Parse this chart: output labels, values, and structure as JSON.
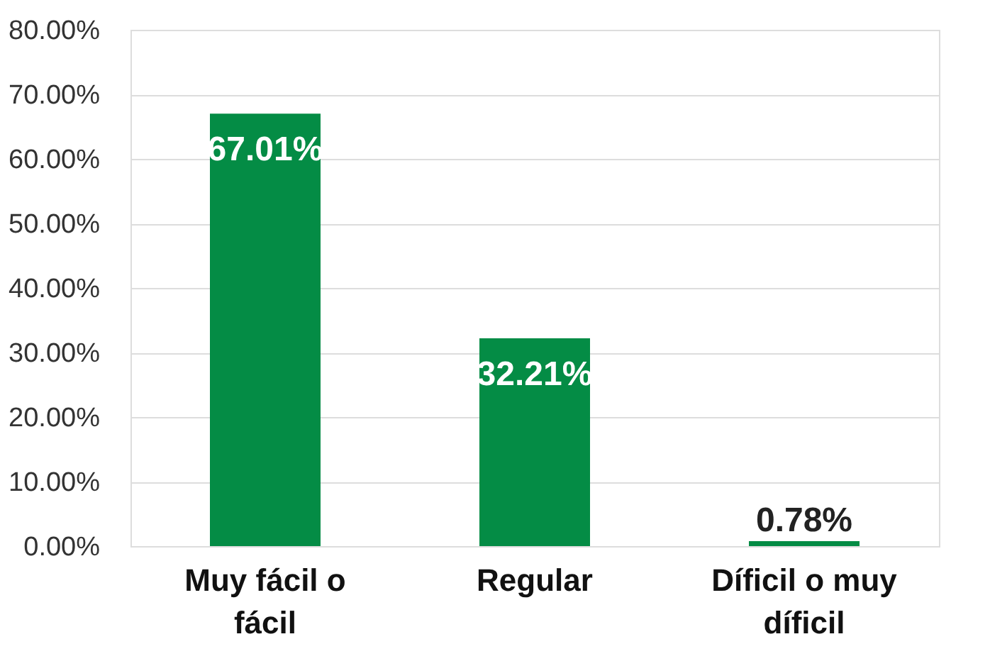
{
  "chart_data": {
    "type": "bar",
    "categories": [
      "Muy fácil o fácil",
      "Regular",
      "Díficil o muy díficil"
    ],
    "values": [
      67.01,
      32.21,
      0.78
    ],
    "color": "#048c45",
    "value_labels": [
      "67.01%",
      "32.21%",
      "0.78%"
    ],
    "ylim": [
      0,
      80
    ],
    "yticks": [
      {
        "value": 0,
        "label": "0.00%"
      },
      {
        "value": 10,
        "label": "10.00%"
      },
      {
        "value": 20,
        "label": "20.00%"
      },
      {
        "value": 30,
        "label": "30.00%"
      },
      {
        "value": 40,
        "label": "40.00%"
      },
      {
        "value": 50,
        "label": "50.00%"
      },
      {
        "value": 60,
        "label": "60.00%"
      },
      {
        "value": 70,
        "label": "70.00%"
      },
      {
        "value": 80,
        "label": "80.00%"
      }
    ],
    "grid": "y"
  }
}
